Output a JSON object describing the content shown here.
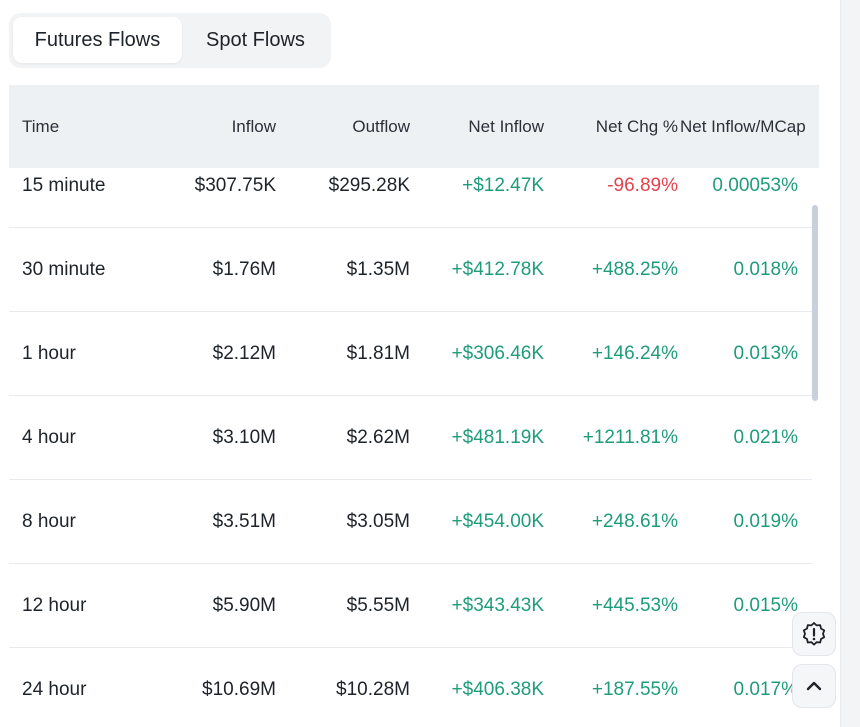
{
  "tabs": [
    {
      "label": "Futures Flows",
      "active": true
    },
    {
      "label": "Spot Flows",
      "active": false
    }
  ],
  "table": {
    "headers": {
      "time": "Time",
      "inflow": "Inflow",
      "outflow": "Outflow",
      "net_inflow": "Net Inflow",
      "net_chg": "Net Chg %",
      "net_inflow_mcap": "Net Inflow/MCap"
    },
    "rows": [
      {
        "time": "15 minute",
        "inflow": "$307.75K",
        "outflow": "$295.28K",
        "net_inflow": "+$12.47K",
        "net_chg": "-96.89%",
        "net_inflow_mcap": "0.00053%"
      },
      {
        "time": "30 minute",
        "inflow": "$1.76M",
        "outflow": "$1.35M",
        "net_inflow": "+$412.78K",
        "net_chg": "+488.25%",
        "net_inflow_mcap": "0.018%"
      },
      {
        "time": "1 hour",
        "inflow": "$2.12M",
        "outflow": "$1.81M",
        "net_inflow": "+$306.46K",
        "net_chg": "+146.24%",
        "net_inflow_mcap": "0.013%"
      },
      {
        "time": "4 hour",
        "inflow": "$3.10M",
        "outflow": "$2.62M",
        "net_inflow": "+$481.19K",
        "net_chg": "+1211.81%",
        "net_inflow_mcap": "0.021%"
      },
      {
        "time": "8 hour",
        "inflow": "$3.51M",
        "outflow": "$3.05M",
        "net_inflow": "+$454.00K",
        "net_chg": "+248.61%",
        "net_inflow_mcap": "0.019%"
      },
      {
        "time": "12 hour",
        "inflow": "$5.90M",
        "outflow": "$5.55M",
        "net_inflow": "+$343.43K",
        "net_chg": "+445.53%",
        "net_inflow_mcap": "0.015%"
      },
      {
        "time": "24 hour",
        "inflow": "$10.69M",
        "outflow": "$10.28M",
        "net_inflow": "+$406.38K",
        "net_chg": "+187.55%",
        "net_inflow_mcap": "0.017%"
      }
    ]
  },
  "floating_buttons": {
    "feedback_icon": "alert-badge-icon",
    "scroll_top_icon": "chevron-up-icon"
  },
  "colors": {
    "positive": "#1f9c7a",
    "negative": "#e0434e",
    "header_bg": "#eef1f4"
  }
}
